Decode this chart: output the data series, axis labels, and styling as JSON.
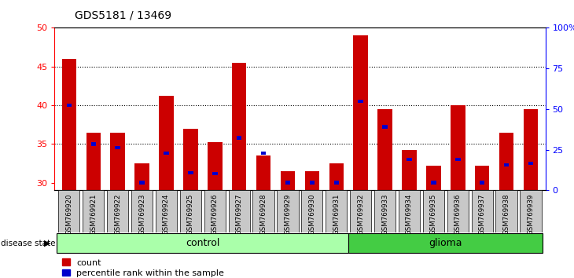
{
  "title": "GDS5181 / 13469",
  "samples": [
    "GSM769920",
    "GSM769921",
    "GSM769922",
    "GSM769923",
    "GSM769924",
    "GSM769925",
    "GSM769926",
    "GSM769927",
    "GSM769928",
    "GSM769929",
    "GSM769930",
    "GSM769931",
    "GSM769932",
    "GSM769933",
    "GSM769934",
    "GSM769935",
    "GSM769936",
    "GSM769937",
    "GSM769938",
    "GSM769939"
  ],
  "count_values": [
    46,
    36.5,
    36.5,
    32.5,
    41.2,
    37,
    35.2,
    45.5,
    33.5,
    31.5,
    31.5,
    32.5,
    49,
    39.5,
    34.2,
    32.2,
    40,
    32.2,
    36.5,
    39.5
  ],
  "percentile_values": [
    40,
    35,
    34.5,
    30,
    33.8,
    31.3,
    31.2,
    35.8,
    33.8,
    30,
    30,
    30,
    40.5,
    37.2,
    33,
    30,
    33,
    30,
    32.3,
    32.5
  ],
  "group": [
    "control",
    "control",
    "control",
    "control",
    "control",
    "control",
    "control",
    "control",
    "control",
    "control",
    "control",
    "control",
    "glioma",
    "glioma",
    "glioma",
    "glioma",
    "glioma",
    "glioma",
    "glioma",
    "glioma"
  ],
  "ylim_left": [
    29,
    50
  ],
  "ylim_right": [
    0,
    100
  ],
  "yticks_left": [
    30,
    35,
    40,
    45,
    50
  ],
  "yticks_right": [
    0,
    25,
    50,
    75,
    100
  ],
  "grid_values": [
    35,
    40,
    45
  ],
  "bar_color": "#cc0000",
  "percentile_color": "#0000cc",
  "cell_bg_color": "#c8c8c8",
  "control_color": "#aaffaa",
  "glioma_color": "#44cc44",
  "legend_count": "count",
  "legend_pct": "percentile rank within the sample",
  "n_control": 12,
  "n_glioma": 8
}
